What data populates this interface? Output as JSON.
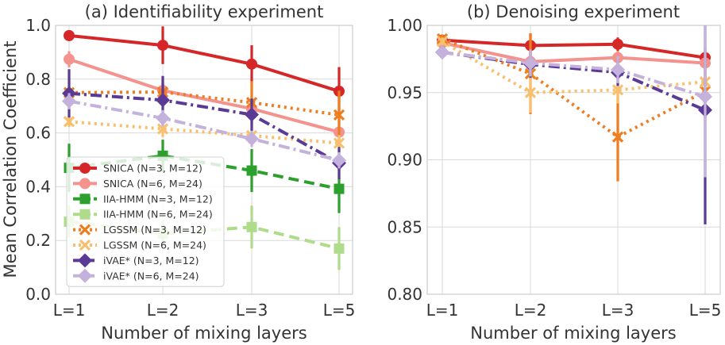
{
  "chart_data": [
    {
      "type": "line",
      "title": "(a) Identifiability experiment",
      "xlabel": "Number of mixing layers",
      "ylabel": "Mean Correlation Coefficient",
      "categories": [
        "L=1",
        "L=2",
        "L=3",
        "L=5"
      ],
      "ylim": [
        0.0,
        1.0
      ],
      "yticks": [
        "0.0",
        "0.2",
        "0.4",
        "0.6",
        "0.8",
        "1.0"
      ],
      "grid": true,
      "legend": "lower-left",
      "series": [
        {
          "name": "SNICA (N=3, M=12)",
          "color": "#d62728",
          "marker": "circle",
          "dash": "solid",
          "values": [
            0.962,
            0.926,
            0.856,
            0.755
          ],
          "err": [
            0.02,
            0.07,
            0.07,
            0.09
          ]
        },
        {
          "name": "SNICA (N=6, M=24)",
          "color": "#f4928e",
          "marker": "circle",
          "dash": "solid",
          "values": [
            0.874,
            0.758,
            0.69,
            0.603
          ],
          "err": [
            0.03,
            0.04,
            0.04,
            0.05
          ]
        },
        {
          "name": "IIA-HMM (N=3, M=12)",
          "color": "#2ca02c",
          "marker": "square",
          "dash": "dash",
          "values": [
            0.47,
            0.515,
            0.46,
            0.392
          ],
          "err": [
            0.09,
            0.06,
            0.08,
            0.09
          ]
        },
        {
          "name": "IIA-HMM (N=6, M=24)",
          "color": "#aedc8a",
          "marker": "square",
          "dash": "dash",
          "values": [
            0.27,
            0.225,
            0.25,
            0.17
          ],
          "err": [
            0.06,
            0.05,
            0.08,
            0.08
          ]
        },
        {
          "name": "LGSSM (N=3, M=12)",
          "color": "#ed7d1f",
          "marker": "x",
          "dash": "dot",
          "values": [
            0.75,
            0.752,
            0.713,
            0.667
          ],
          "err": [
            0.02,
            0.03,
            0.08,
            0.09
          ]
        },
        {
          "name": "LGSSM (N=6, M=24)",
          "color": "#f8c06e",
          "marker": "x",
          "dash": "dot",
          "values": [
            0.642,
            0.615,
            0.59,
            0.562
          ],
          "err": [
            0.02,
            0.03,
            0.03,
            0.03
          ]
        },
        {
          "name": "iVAE* (N=3, M=12)",
          "color": "#5b3a96",
          "marker": "diamond",
          "dash": "dashdot",
          "values": [
            0.747,
            0.722,
            0.668,
            0.488
          ],
          "err": [
            0.09,
            0.09,
            0.06,
            0.06
          ]
        },
        {
          "name": "iVAE* (N=6, M=24)",
          "color": "#c4b1dc",
          "marker": "diamond",
          "dash": "dashdot",
          "values": [
            0.718,
            0.655,
            0.578,
            0.498
          ],
          "err": [
            0.03,
            0.03,
            0.03,
            0.03
          ]
        }
      ]
    },
    {
      "type": "line",
      "title": "(b) Denoising experiment",
      "xlabel": "Number of mixing layers",
      "ylabel": "",
      "categories": [
        "L=1",
        "L=2",
        "L=3",
        "L=5"
      ],
      "ylim": [
        0.8,
        1.0
      ],
      "yticks": [
        "0.80",
        "0.85",
        "0.90",
        "0.95",
        "1.00"
      ],
      "grid": true,
      "legend": "",
      "series": [
        {
          "name": "SNICA (N=3, M=12)",
          "color": "#d62728",
          "marker": "circle",
          "dash": "solid",
          "values": [
            0.989,
            0.985,
            0.986,
            0.976
          ],
          "err": [
            0.003,
            0.009,
            0.005,
            0.008
          ]
        },
        {
          "name": "SNICA (N=6, M=24)",
          "color": "#f4928e",
          "marker": "circle",
          "dash": "solid",
          "values": [
            0.987,
            0.973,
            0.976,
            0.972
          ],
          "err": [
            0.003,
            0.006,
            0.005,
            0.006
          ]
        },
        {
          "name": "LGSSM (N=3, M=12)",
          "color": "#ed7d1f",
          "marker": "x",
          "dash": "dot",
          "values": [
            0.99,
            0.964,
            0.917,
            0.951
          ],
          "err": [
            0.003,
            0.03,
            0.033,
            0.02
          ]
        },
        {
          "name": "LGSSM (N=6, M=24)",
          "color": "#f8c06e",
          "marker": "x",
          "dash": "dot",
          "values": [
            0.988,
            0.95,
            0.952,
            0.958
          ],
          "err": [
            0.003,
            0.015,
            0.01,
            0.01
          ]
        },
        {
          "name": "iVAE* (N=3, M=12)",
          "color": "#5b3a96",
          "marker": "diamond",
          "dash": "dashdot",
          "values": [
            0.98,
            0.971,
            0.965,
            0.937
          ],
          "err": [
            0.003,
            0.01,
            0.01,
            0.085
          ]
        },
        {
          "name": "iVAE* (N=6, M=24)",
          "color": "#c4b1dc",
          "marker": "diamond",
          "dash": "dashdot",
          "values": [
            0.98,
            0.972,
            0.967,
            0.947
          ],
          "err": [
            0.003,
            0.01,
            0.01,
            0.06
          ]
        }
      ]
    }
  ]
}
